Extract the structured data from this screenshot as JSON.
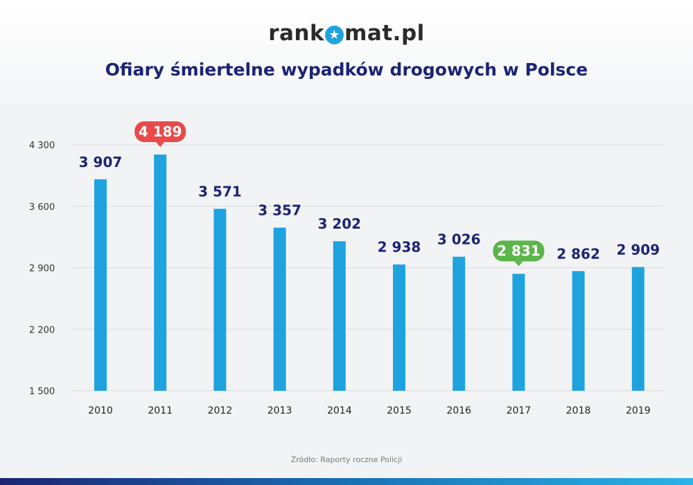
{
  "brand": {
    "logo_left": "rank",
    "logo_right": "mat.pl",
    "logo_icon": "star-icon"
  },
  "title": "Ofiary śmiertelne wypadków drogowych w Polsce",
  "source": "Źródło: Raporty roczne Policji",
  "colors": {
    "bar": "#1fa3df",
    "title": "#1c2472",
    "value_label": "#1c2472",
    "max_callout": "#e84a4a",
    "min_callout": "#5cb54a",
    "grid": "#d9dbdf"
  },
  "chart_data": {
    "type": "bar",
    "title": "Ofiary śmiertelne wypadków drogowych w Polsce",
    "categories": [
      "2010",
      "2011",
      "2012",
      "2013",
      "2014",
      "2015",
      "2016",
      "2017",
      "2018",
      "2019"
    ],
    "values": [
      3907,
      4189,
      3571,
      3357,
      3202,
      2938,
      3026,
      2831,
      2862,
      2909
    ],
    "value_labels": [
      "3 907",
      "4 189",
      "3 571",
      "3 357",
      "3 202",
      "2 938",
      "3 026",
      "2 831",
      "2 862",
      "2 909"
    ],
    "ylim": [
      1500,
      4300
    ],
    "yticks": [
      1500,
      2200,
      2900,
      3600,
      4300
    ],
    "ytick_labels": [
      "1 500",
      "2 200",
      "2 900",
      "3 600",
      "4 300"
    ],
    "highlight_max_index": 1,
    "highlight_min_index": 7,
    "grid": true,
    "legend": "none"
  }
}
